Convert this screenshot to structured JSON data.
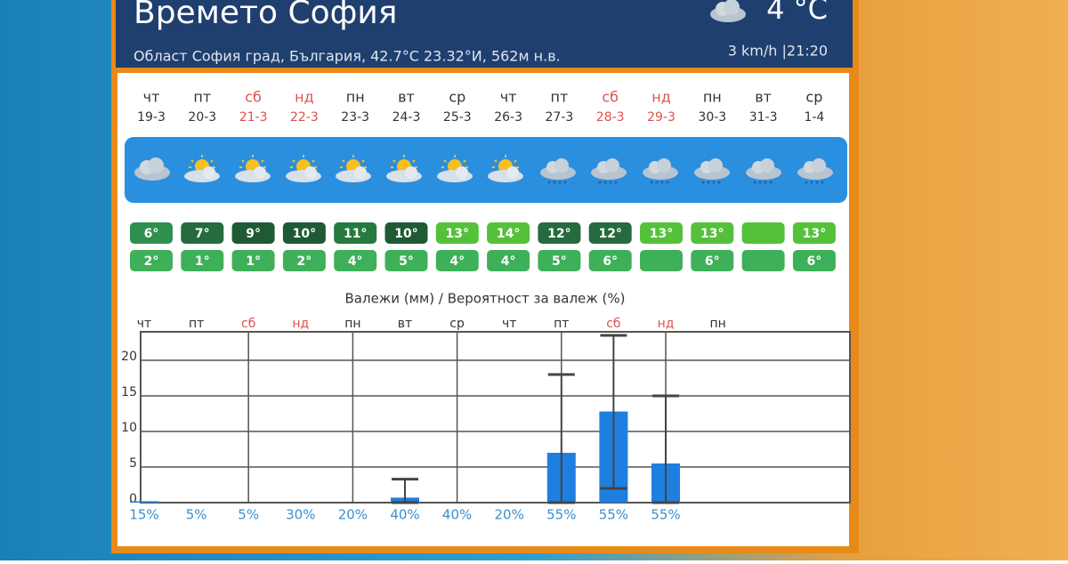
{
  "header": {
    "title": "Времето София",
    "temperature": "4 °C",
    "location": "Област София град, България, 42.7°С 23.32°И, 562м н.в.",
    "wind_time": "3 km/h |21:20"
  },
  "forecast": {
    "days": [
      {
        "name": "чт",
        "date": "19-3",
        "color": "#333333",
        "high": "6°",
        "low": "2°",
        "high_color": "#2f8f4e"
      },
      {
        "name": "пт",
        "date": "20-3",
        "color": "#333333",
        "high": "7°",
        "low": "1°",
        "high_color": "#256b3e"
      },
      {
        "name": "сб",
        "date": "21-3",
        "color": "#d9534f",
        "high": "9°",
        "low": "1°",
        "high_color": "#1f5a34"
      },
      {
        "name": "нд",
        "date": "22-3",
        "color": "#d9534f",
        "high": "10°",
        "low": "2°",
        "high_color": "#1f5a34"
      },
      {
        "name": "пн",
        "date": "23-3",
        "color": "#333333",
        "high": "11°",
        "low": "4°",
        "high_color": "#267a3f"
      },
      {
        "name": "вт",
        "date": "24-3",
        "color": "#333333",
        "high": "10°",
        "low": "5°",
        "high_color": "#1f5a34"
      },
      {
        "name": "ср",
        "date": "25-3",
        "color": "#333333",
        "high": "13°",
        "low": "4°",
        "high_color": "#55c13a"
      },
      {
        "name": "чт",
        "date": "26-3",
        "color": "#333333",
        "high": "14°",
        "low": "4°",
        "high_color": "#55c13a"
      },
      {
        "name": "пт",
        "date": "27-3",
        "color": "#333333",
        "high": "12°",
        "low": "5°",
        "high_color": "#256b3e"
      },
      {
        "name": "сб",
        "date": "28-3",
        "color": "#d9534f",
        "high": "12°",
        "low": "6°",
        "high_color": "#256b3e"
      },
      {
        "name": "нд",
        "date": "29-3",
        "color": "#d9534f",
        "high": "13°",
        "low": null,
        "high_color": "#55c13a"
      },
      {
        "name": "пн",
        "date": "30-3",
        "color": "#333333",
        "high": "13°",
        "low": "6°",
        "high_color": "#55c13a"
      },
      {
        "name": "вт",
        "date": "31-3",
        "color": "#333333",
        "high": null,
        "low": null,
        "high_color": "#55c13a"
      },
      {
        "name": "ср",
        "date": "1-4",
        "color": "#333333",
        "high": "13°",
        "low": "6°",
        "high_color": "#55c13a"
      }
    ],
    "low_color": "#3fb05a"
  },
  "chart_data": {
    "type": "bar",
    "title": "Валежи (мм) / Вероятност за валеж (%)",
    "categories": [
      "чт",
      "пт",
      "сб",
      "нд",
      "пн",
      "вт",
      "ср",
      "чт",
      "пт",
      "сб",
      "нд",
      "пн"
    ],
    "category_colors": [
      "#333333",
      "#333333",
      "#d9534f",
      "#d9534f",
      "#333333",
      "#333333",
      "#333333",
      "#333333",
      "#333333",
      "#d9534f",
      "#d9534f",
      "#333333"
    ],
    "values": [
      0.2,
      0,
      0,
      0,
      0,
      0.7,
      0,
      0,
      7,
      12.8,
      5.5,
      null
    ],
    "low": [
      null,
      null,
      null,
      null,
      null,
      0,
      null,
      null,
      0,
      2,
      0,
      null
    ],
    "high": [
      null,
      null,
      null,
      null,
      null,
      3.3,
      null,
      null,
      18,
      23.5,
      15,
      null
    ],
    "probabilities": [
      "15%",
      "5%",
      "5%",
      "30%",
      "20%",
      "40%",
      "40%",
      "20%",
      "55%",
      "55%",
      "55%",
      null
    ],
    "color": "#1f7fe0",
    "ylim": [
      0,
      24
    ],
    "yticks": [
      0,
      5,
      10,
      15,
      20
    ],
    "grid": true
  }
}
